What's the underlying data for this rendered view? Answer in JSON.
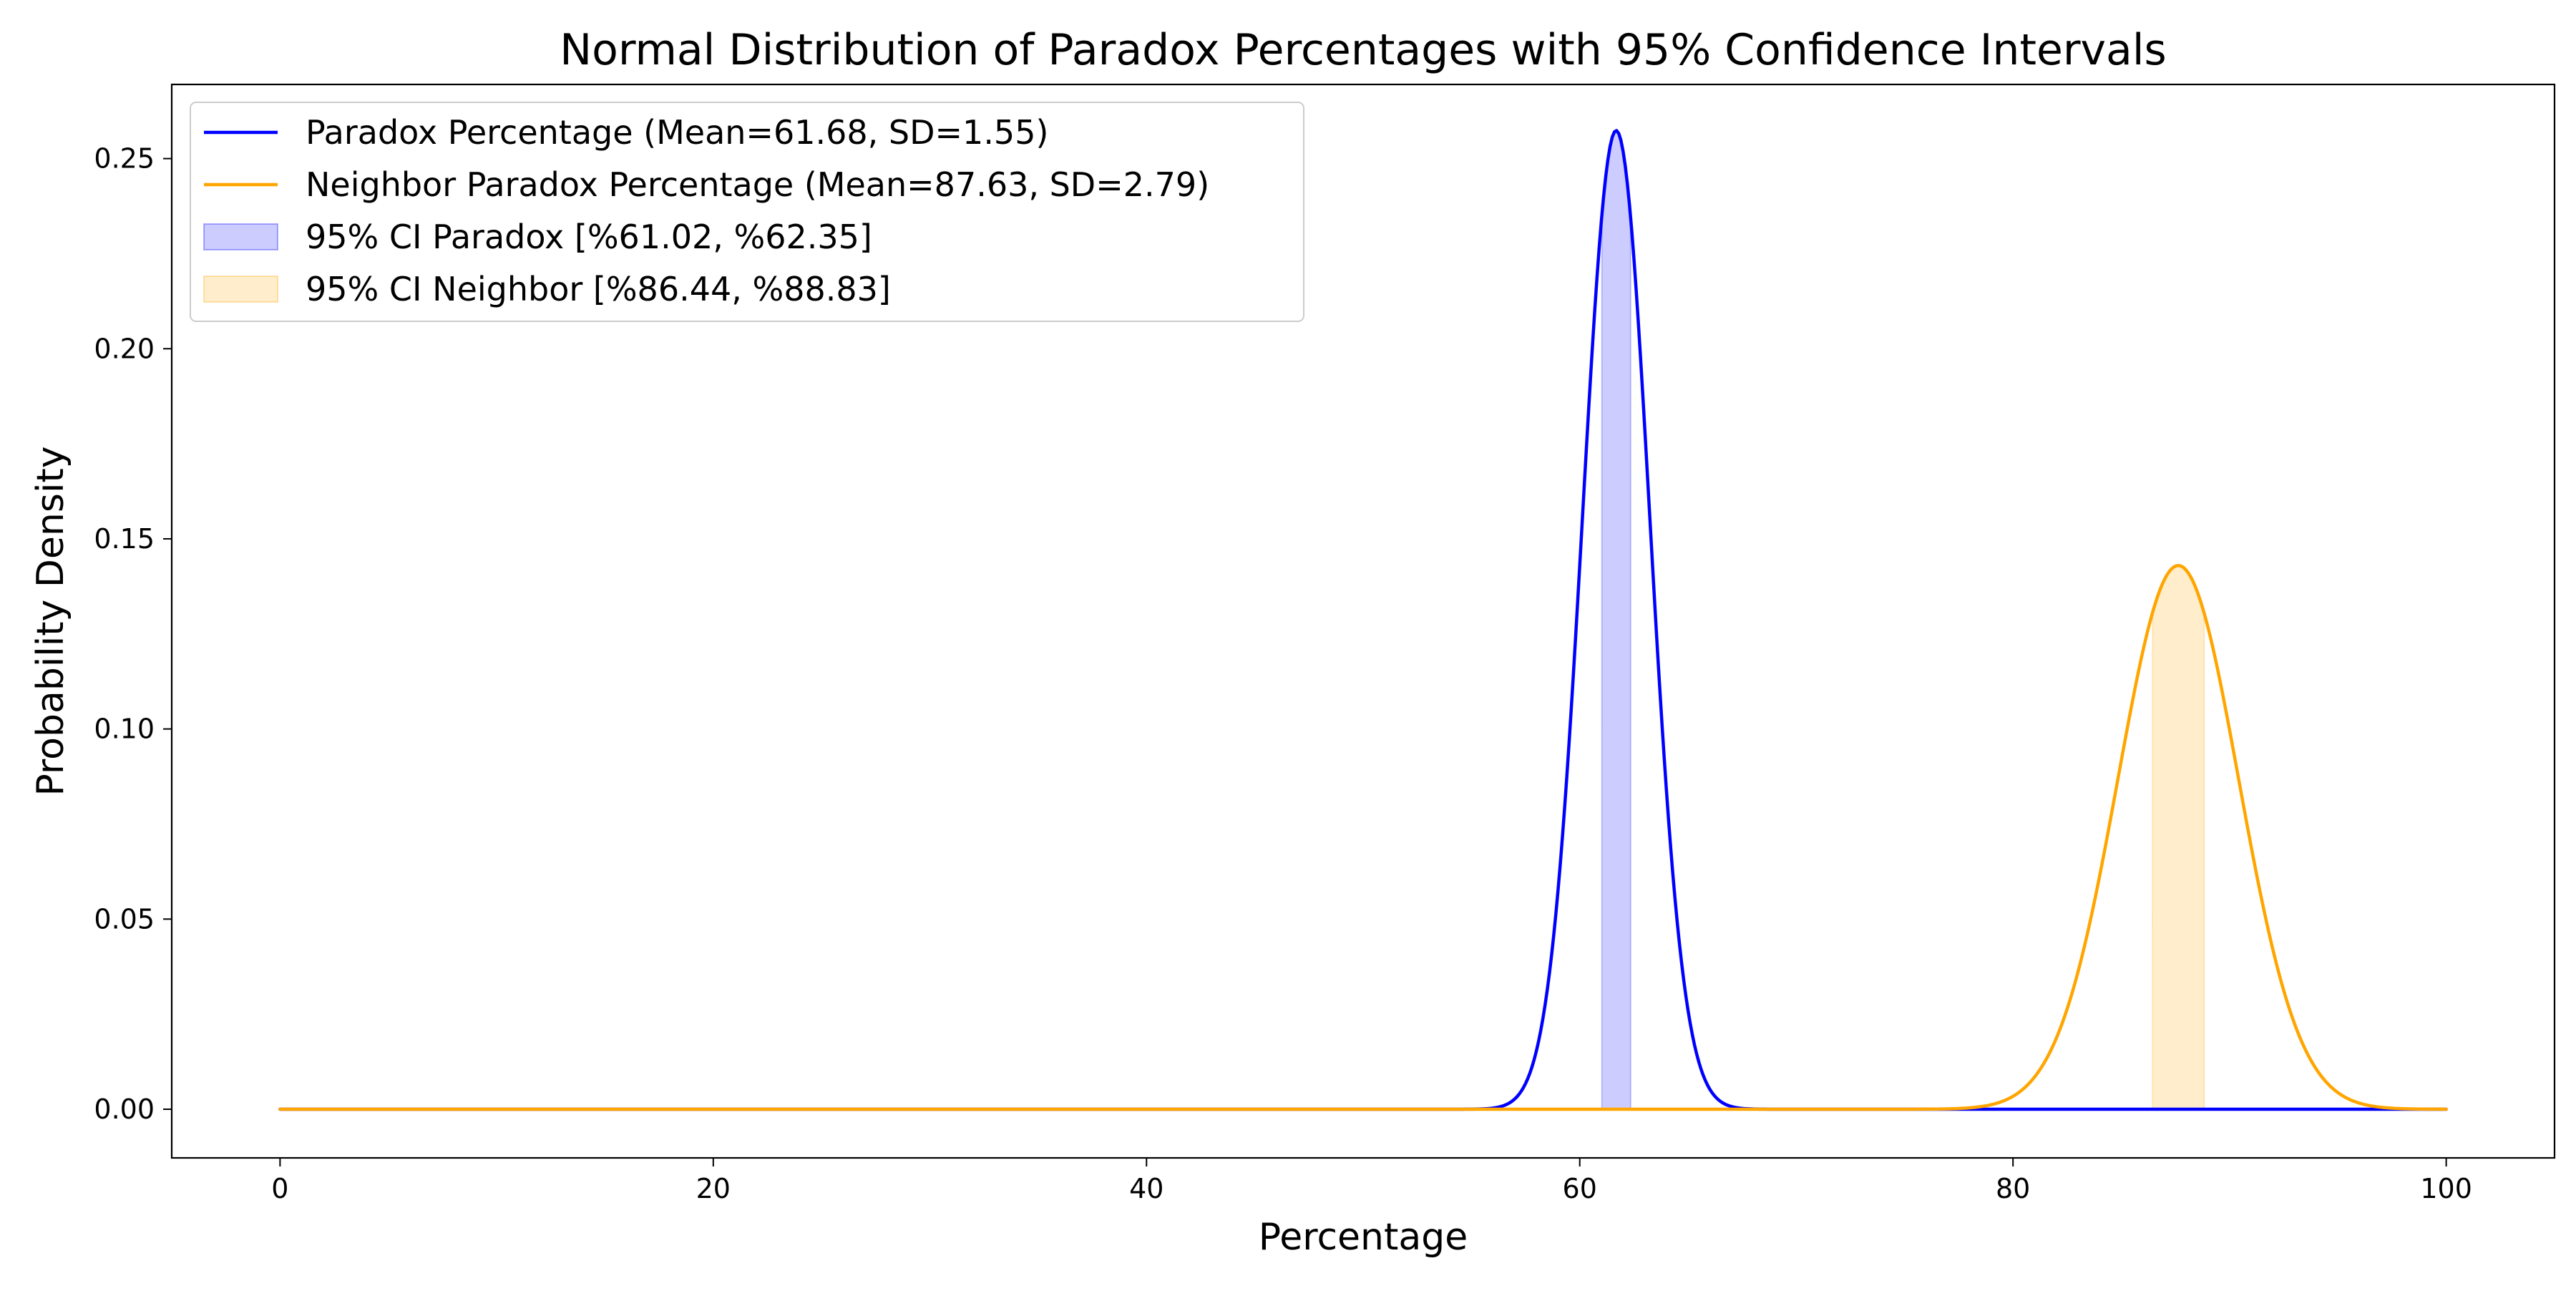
{
  "chart_data": {
    "type": "line",
    "title": "Normal Distribution of Paradox Percentages with 95% Confidence Intervals",
    "xlabel": "Percentage",
    "ylabel": "Probability Density",
    "xlim": [
      -5,
      105
    ],
    "ylim": [
      -0.0128,
      0.2695
    ],
    "xticks": [
      0,
      20,
      40,
      60,
      80,
      100
    ],
    "xtick_labels": [
      "0",
      "20",
      "40",
      "60",
      "80",
      "100"
    ],
    "yticks": [
      0,
      0.05,
      0.1,
      0.15,
      0.2,
      0.25
    ],
    "ytick_labels": [
      "0.00",
      "0.05",
      "0.10",
      "0.15",
      "0.20",
      "0.25"
    ],
    "x_range": [
      0,
      100
    ],
    "grid": false,
    "legend_position": "top-left",
    "series": [
      {
        "name": "Paradox Percentage (Mean=61.68, SD=1.55)",
        "kind": "normal_pdf",
        "mean": 61.68,
        "sd": 1.55,
        "color": "#0000ff"
      },
      {
        "name": "Neighbor Paradox Percentage (Mean=87.63, SD=2.79)",
        "kind": "normal_pdf",
        "mean": 87.63,
        "sd": 2.79,
        "color": "#ffa500"
      }
    ],
    "shaded_intervals": [
      {
        "name": "95% CI Paradox [%61.02, %62.35]",
        "series_index": 0,
        "x_from": 61.02,
        "x_to": 62.35,
        "color": "#0000ff",
        "opacity": 0.2
      },
      {
        "name": "95% CI Neighbor [%86.44, %88.83]",
        "series_index": 1,
        "x_from": 86.44,
        "x_to": 88.83,
        "color": "#ffa500",
        "opacity": 0.2
      }
    ]
  }
}
